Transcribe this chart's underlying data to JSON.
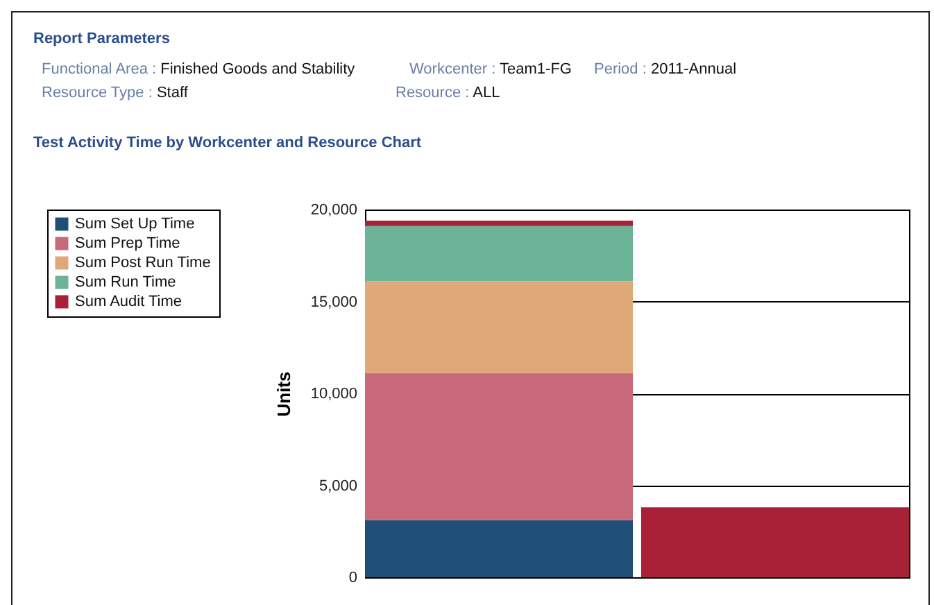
{
  "chart_data": {
    "type": "bar",
    "title": "Test Activity Time by Workcenter and Resource Chart",
    "annotations": [
      "Report Parameters",
      "Functional Area : Finished Goods and Stability",
      "Workcenter : Team1-FG",
      "Period : 2011-Annual",
      "Resource Type : Staff",
      "Resource : ALL"
    ],
    "ylabel": "Units",
    "categories": [
      null,
      null
    ],
    "stacked": true,
    "ylim": [
      0,
      20000
    ],
    "yticks": [
      0,
      {
        "value": 5000,
        "label": "5,000"
      },
      {
        "value": 10000,
        "label": "10,000"
      },
      {
        "value": 15000,
        "label": "15,000"
      },
      {
        "value": 20000,
        "label": "20,000"
      }
    ],
    "grid": "y",
    "legend": "left",
    "series": [
      {
        "name": "Sum Set Up Time",
        "color": "#1f4e79",
        "values": [
          3100,
          null
        ]
      },
      {
        "name": "Sum Prep Time",
        "color": "#c8697a",
        "values": [
          8000,
          null
        ]
      },
      {
        "name": "Sum Post Run Time",
        "color": "#e0a878",
        "values": [
          5000,
          null
        ]
      },
      {
        "name": "Sum Run Time",
        "color": "#6db398",
        "values": [
          3000,
          null
        ]
      },
      {
        "name": "Sum Audit Time",
        "color": "#a82136",
        "values": [
          300,
          3800
        ]
      }
    ]
  }
}
